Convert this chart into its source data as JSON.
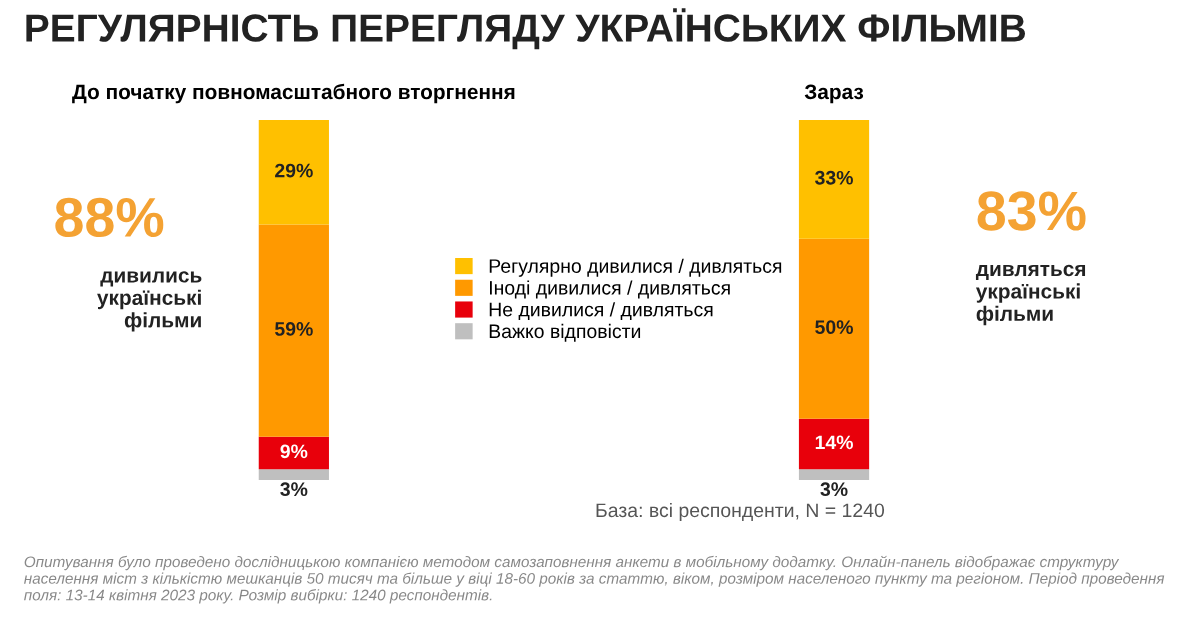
{
  "chart_data": {
    "type": "bar",
    "stacked": true,
    "title": "РЕГУЛЯРНІСТЬ ПЕРЕГЛЯДУ УКРАЇНСЬКИХ ФІЛЬМІВ",
    "categories": [
      "До початку повномасштабного вторгнення",
      "Зараз"
    ],
    "series": [
      {
        "name": "Важко відповісти",
        "color": "#bfbfbf",
        "values": [
          3,
          3
        ],
        "value_labels": [
          "3%",
          "3%"
        ]
      },
      {
        "name": "Не дивилися / дивляться",
        "color": "#e8000b",
        "values": [
          9,
          14
        ],
        "value_labels": [
          "9%",
          "14%"
        ]
      },
      {
        "name": "Іноді дивилися / дивляться",
        "color": "#ff9900",
        "values": [
          59,
          50
        ],
        "value_labels": [
          "59%",
          "50%"
        ]
      },
      {
        "name": "Регулярно дивилися / дивляться",
        "color": "#ffc000",
        "values": [
          29,
          33
        ],
        "value_labels": [
          "29%",
          "33%"
        ]
      }
    ],
    "legend": "center",
    "grid": false,
    "annotations": [
      "88%",
      "дивились\nукраїнські\nфільми",
      "83%",
      "дивляться\nукраїнські\nфільми",
      "База: всі респонденти, N = 1240",
      "Опитування було проведено дослідницькою компанією методом самозаповнення анкети в мобільному додатку. Онлайн-панель відображає структуру населення міст з кількістю мешканців 50 тисяч та більше у віці 18-60 років за статтю, віком, розміром населеного пункту та регіоном. Період проведення поля: 13-14 квітня 2023 року. Розмір вибірки: 1240 респондентів."
    ]
  }
}
